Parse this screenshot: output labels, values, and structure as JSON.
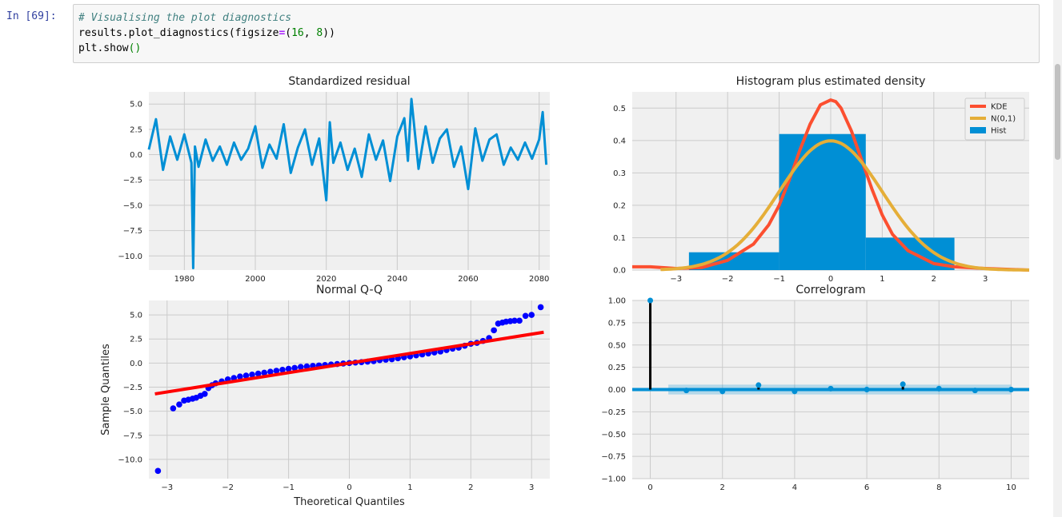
{
  "cell": {
    "prompt": "In [69]:",
    "code_comment": "# Visualising the plot diagnostics",
    "code_line2_a": "results.plot_diagnostics(figsize",
    "code_line2_eq": "=",
    "code_line2_p1": "(",
    "code_line2_n1": "16",
    "code_line2_comma": ", ",
    "code_line2_n2": "8",
    "code_line2_p2": "))",
    "code_line3_a": "plt.show",
    "code_line3_b": "()"
  },
  "colors": {
    "blue": "#008fd5",
    "red": "#fc4f30",
    "gold": "#e5ae38",
    "qq_points": "#0000ff",
    "qq_line": "#ff0000",
    "panel_bg": "#f0f0f0",
    "grid": "#cbcbcb"
  },
  "chart_data": [
    {
      "type": "line",
      "title": "Standardized residual",
      "xlabel": "",
      "ylabel": "",
      "xlim": [
        1970,
        2083
      ],
      "ylim": [
        -11.4,
        6.2
      ],
      "x_ticks": [
        "1980",
        "2000",
        "2020",
        "2040",
        "2060",
        "2080"
      ],
      "y_ticks": [
        "5.0",
        "2.5",
        "0.0",
        "−2.5",
        "−5.0",
        "−7.5",
        "−10.0"
      ],
      "series": [
        {
          "color": "#008fd5",
          "x": [
            1970,
            1972,
            1974,
            1976,
            1978,
            1980,
            1982,
            1982.5,
            1983,
            1984,
            1986,
            1988,
            1990,
            1992,
            1994,
            1996,
            1998,
            2000,
            2002,
            2004,
            2006,
            2008,
            2010,
            2012,
            2014,
            2016,
            2018,
            2020,
            2021,
            2022,
            2024,
            2026,
            2028,
            2030,
            2032,
            2034,
            2036,
            2038,
            2040,
            2042,
            2043,
            2044,
            2046,
            2048,
            2050,
            2052,
            2054,
            2056,
            2058,
            2060,
            2062,
            2064,
            2066,
            2068,
            2070,
            2072,
            2074,
            2076,
            2078,
            2080,
            2081,
            2082
          ],
          "y": [
            0.5,
            3.5,
            -1.5,
            1.8,
            -0.5,
            2.0,
            -0.8,
            -11.2,
            0.8,
            -1.2,
            1.5,
            -0.6,
            0.8,
            -1.0,
            1.2,
            -0.5,
            0.6,
            2.8,
            -1.3,
            1.0,
            -0.4,
            3.0,
            -1.8,
            0.7,
            2.5,
            -1.0,
            1.6,
            -4.5,
            3.2,
            -0.8,
            1.2,
            -1.5,
            0.6,
            -2.2,
            2.0,
            -0.5,
            1.4,
            -2.6,
            1.8,
            3.6,
            -0.6,
            5.5,
            -1.4,
            2.8,
            -0.8,
            1.6,
            2.5,
            -1.2,
            0.8,
            -3.4,
            2.6,
            -0.6,
            1.5,
            2.0,
            -1.0,
            0.7,
            -0.5,
            1.2,
            -0.4,
            1.5,
            4.2,
            -1.0
          ]
        }
      ]
    },
    {
      "type": "bar",
      "title": "Histogram plus estimated density",
      "xlabel": "",
      "ylabel": "",
      "xlim": [
        -3.85,
        3.85
      ],
      "ylim": [
        0,
        0.55
      ],
      "x_ticks": [
        "−3",
        "−2",
        "−1",
        "0",
        "1",
        "2",
        "3"
      ],
      "y_ticks": [
        "0.0",
        "0.1",
        "0.2",
        "0.3",
        "0.4",
        "0.5"
      ],
      "legend": [
        "KDE",
        "N(0,1)",
        "Hist"
      ],
      "legend_position": "top-right",
      "hist_edges": [
        -2.75,
        -1.0,
        0.68,
        2.4
      ],
      "hist_values": [
        0.055,
        0.42,
        0.1
      ],
      "kde_x": [
        -3.85,
        -3.5,
        -3.0,
        -2.5,
        -2.0,
        -1.5,
        -1.2,
        -1.0,
        -0.8,
        -0.6,
        -0.4,
        -0.2,
        0,
        0.1,
        0.2,
        0.4,
        0.6,
        0.8,
        1.0,
        1.2,
        1.5,
        2.0,
        2.4,
        3.0,
        3.85
      ],
      "kde_y": [
        0.01,
        0.01,
        0.005,
        0.008,
        0.03,
        0.08,
        0.14,
        0.2,
        0.28,
        0.37,
        0.45,
        0.51,
        0.525,
        0.52,
        0.5,
        0.43,
        0.34,
        0.25,
        0.17,
        0.11,
        0.06,
        0.02,
        0.01,
        0.005,
        0.0
      ],
      "normal_mean": 0,
      "normal_sd": 1
    },
    {
      "type": "scatter",
      "title": "Normal Q-Q",
      "xlabel": "Theoretical Quantiles",
      "ylabel": "Sample Quantiles",
      "xlim": [
        -3.3,
        3.3
      ],
      "ylim": [
        -12.0,
        6.5
      ],
      "x_ticks": [
        "−3",
        "−2",
        "−1",
        "0",
        "1",
        "2",
        "3"
      ],
      "y_ticks": [
        "5.0",
        "2.5",
        "0.0",
        "−2.5",
        "−5.0",
        "−7.5",
        "−10.0"
      ],
      "points_x": [
        -3.15,
        -2.9,
        -2.8,
        -2.72,
        -2.65,
        -2.58,
        -2.52,
        -2.45,
        -2.38,
        -2.32,
        -2.26,
        -2.2,
        -2.1,
        -2.0,
        -1.9,
        -1.8,
        -1.7,
        -1.6,
        -1.5,
        -1.4,
        -1.3,
        -1.2,
        -1.1,
        -1.0,
        -0.9,
        -0.8,
        -0.7,
        -0.6,
        -0.5,
        -0.4,
        -0.3,
        -0.2,
        -0.1,
        0,
        0.1,
        0.2,
        0.3,
        0.4,
        0.5,
        0.6,
        0.7,
        0.8,
        0.9,
        1.0,
        1.1,
        1.2,
        1.3,
        1.4,
        1.5,
        1.6,
        1.7,
        1.8,
        1.9,
        2.0,
        2.1,
        2.2,
        2.3,
        2.38,
        2.45,
        2.52,
        2.58,
        2.65,
        2.72,
        2.8,
        2.9,
        3.0,
        3.15
      ],
      "points_y": [
        -11.2,
        -4.7,
        -4.3,
        -3.9,
        -3.8,
        -3.7,
        -3.6,
        -3.4,
        -3.2,
        -2.6,
        -2.3,
        -2.1,
        -1.9,
        -1.7,
        -1.55,
        -1.4,
        -1.3,
        -1.2,
        -1.1,
        -1.0,
        -0.9,
        -0.8,
        -0.7,
        -0.6,
        -0.5,
        -0.4,
        -0.35,
        -0.3,
        -0.25,
        -0.2,
        -0.15,
        -0.1,
        -0.05,
        0,
        0.05,
        0.1,
        0.15,
        0.2,
        0.3,
        0.35,
        0.4,
        0.5,
        0.6,
        0.7,
        0.8,
        0.9,
        1.0,
        1.1,
        1.2,
        1.35,
        1.5,
        1.6,
        1.8,
        2.0,
        2.1,
        2.3,
        2.6,
        3.4,
        4.1,
        4.2,
        4.3,
        4.35,
        4.4,
        4.4,
        4.9,
        5.0,
        5.8
      ],
      "line": [
        [
          -3.2,
          -3.2
        ],
        [
          3.2,
          3.2
        ]
      ]
    },
    {
      "type": "bar",
      "title": "Correlogram",
      "xlabel": "",
      "ylabel": "",
      "xlim": [
        -0.5,
        10.5
      ],
      "ylim": [
        -1.0,
        1.0
      ],
      "x_ticks": [
        "0",
        "2",
        "4",
        "6",
        "8",
        "10"
      ],
      "y_ticks": [
        "1.00",
        "0.75",
        "0.50",
        "0.25",
        "0.00",
        "−0.25",
        "−0.50",
        "−0.75",
        "−1.00"
      ],
      "lags": [
        0,
        1,
        2,
        3,
        4,
        5,
        6,
        7,
        8,
        9,
        10
      ],
      "acf": [
        1.0,
        -0.01,
        -0.02,
        0.05,
        -0.02,
        0.01,
        0.0,
        0.06,
        0.01,
        -0.01,
        0.0
      ],
      "conf_band": 0.055
    }
  ]
}
